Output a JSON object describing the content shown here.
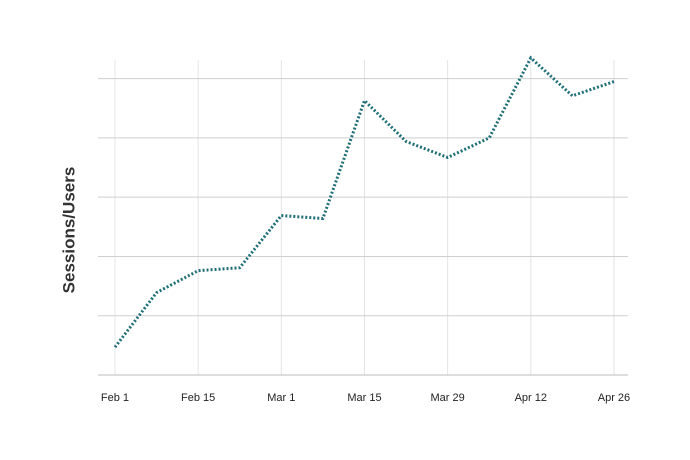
{
  "chart_data": {
    "type": "line",
    "y_label": "Sessions/Users",
    "categories": [
      "Feb 1",
      null,
      "Feb 15",
      null,
      "Mar 1",
      null,
      "Mar 15",
      null,
      "Mar 29",
      null,
      "Apr 12",
      null,
      "Apr 26"
    ],
    "values": [
      0.47,
      1.39,
      1.76,
      1.81,
      2.69,
      2.64,
      4.63,
      3.94,
      3.67,
      4.0,
      5.35,
      4.71,
      4.95
    ],
    "color": "#1f6f78",
    "line_style": "dotted",
    "ylim": [
      0,
      5.5
    ],
    "yticks": [
      0,
      1,
      2,
      3,
      4,
      5
    ],
    "grid": true
  }
}
